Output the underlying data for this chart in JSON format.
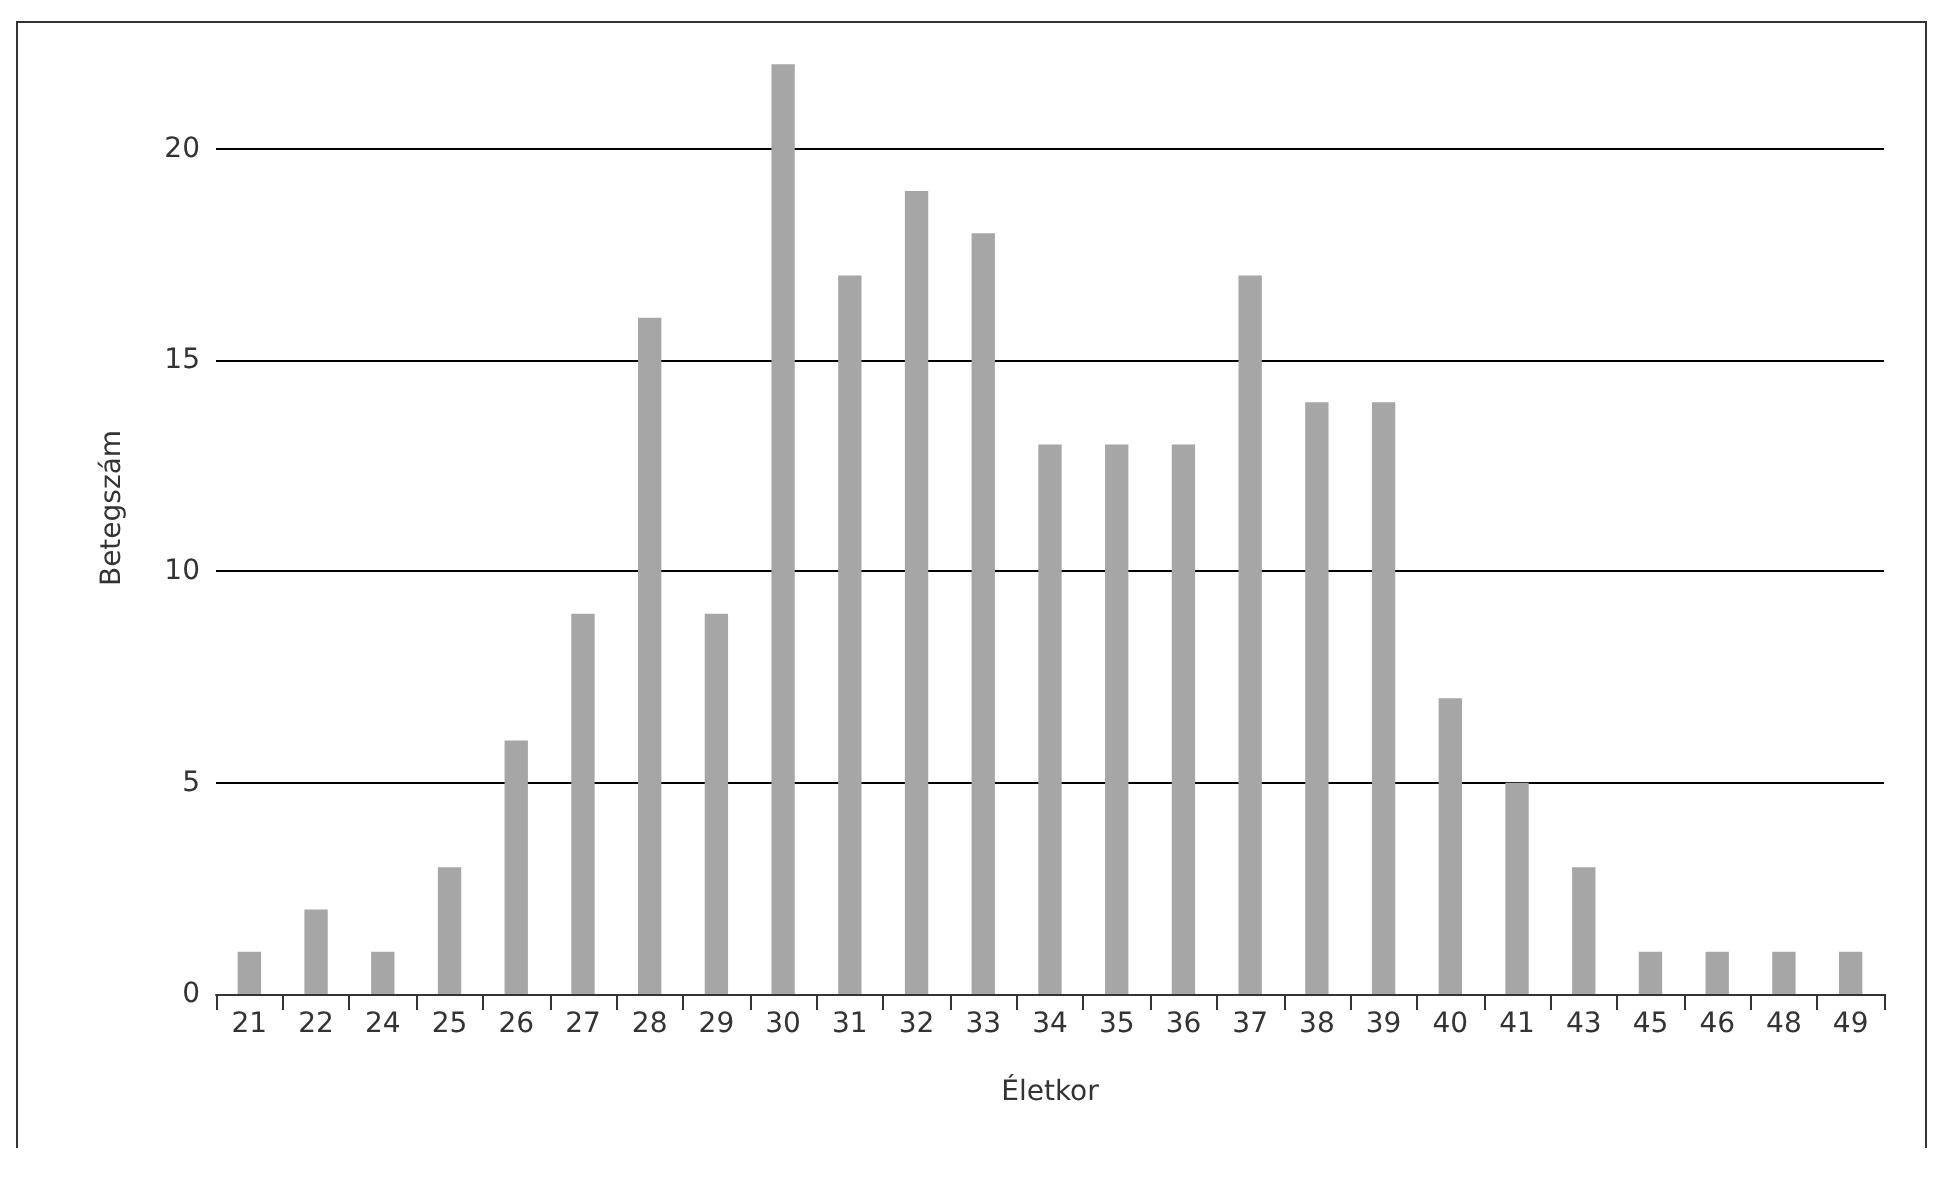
{
  "chart_data": {
    "type": "bar",
    "xlabel": "Életkor",
    "ylabel": "Betegszám",
    "categories": [
      "21",
      "22",
      "24",
      "25",
      "26",
      "27",
      "28",
      "29",
      "30",
      "31",
      "32",
      "33",
      "34",
      "35",
      "36",
      "37",
      "38",
      "39",
      "40",
      "41",
      "43",
      "45",
      "46",
      "48",
      "49"
    ],
    "values": [
      1,
      2,
      1,
      3,
      6,
      9,
      16,
      9,
      22,
      17,
      19,
      18,
      13,
      13,
      13,
      17,
      14,
      14,
      7,
      5,
      3,
      1,
      1,
      1,
      1
    ],
    "color": "#a6a6a6",
    "ylim": [
      0,
      23
    ],
    "yticks": [
      0,
      5,
      10,
      15,
      20
    ],
    "grid": "y"
  }
}
